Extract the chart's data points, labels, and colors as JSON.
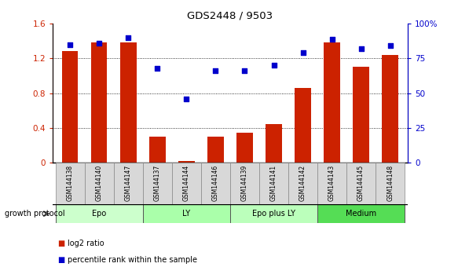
{
  "title": "GDS2448 / 9503",
  "samples": [
    "GSM144138",
    "GSM144140",
    "GSM144147",
    "GSM144137",
    "GSM144144",
    "GSM144146",
    "GSM144139",
    "GSM144141",
    "GSM144142",
    "GSM144143",
    "GSM144145",
    "GSM144148"
  ],
  "log2_ratio": [
    1.28,
    1.38,
    1.38,
    0.3,
    0.02,
    0.3,
    0.34,
    0.44,
    0.86,
    1.38,
    1.1,
    1.24
  ],
  "percentile_rank": [
    85,
    86,
    90,
    68,
    46,
    66,
    66,
    70,
    79,
    89,
    82,
    84
  ],
  "groups": [
    {
      "label": "Epo",
      "start": 0,
      "end": 3,
      "color": "#ccffcc"
    },
    {
      "label": "LY",
      "start": 3,
      "end": 6,
      "color": "#aaffaa"
    },
    {
      "label": "Epo plus LY",
      "start": 6,
      "end": 9,
      "color": "#bbffbb"
    },
    {
      "label": "Medium",
      "start": 9,
      "end": 12,
      "color": "#55dd55"
    }
  ],
  "bar_color": "#cc2200",
  "dot_color": "#0000cc",
  "ylim_left": [
    0,
    1.6
  ],
  "ylim_right": [
    0,
    100
  ],
  "yticks_left": [
    0,
    0.4,
    0.8,
    1.2,
    1.6
  ],
  "yticks_right": [
    0,
    25,
    50,
    75,
    100
  ],
  "ytick_labels_left": [
    "0",
    "0.4",
    "0.8",
    "1.2",
    "1.6"
  ],
  "ytick_labels_right": [
    "0",
    "25",
    "50",
    "75",
    "100%"
  ],
  "tick_label_bg": "#d8d8d8",
  "grid_lines": [
    0.4,
    0.8,
    1.2
  ],
  "bar_width": 0.55
}
